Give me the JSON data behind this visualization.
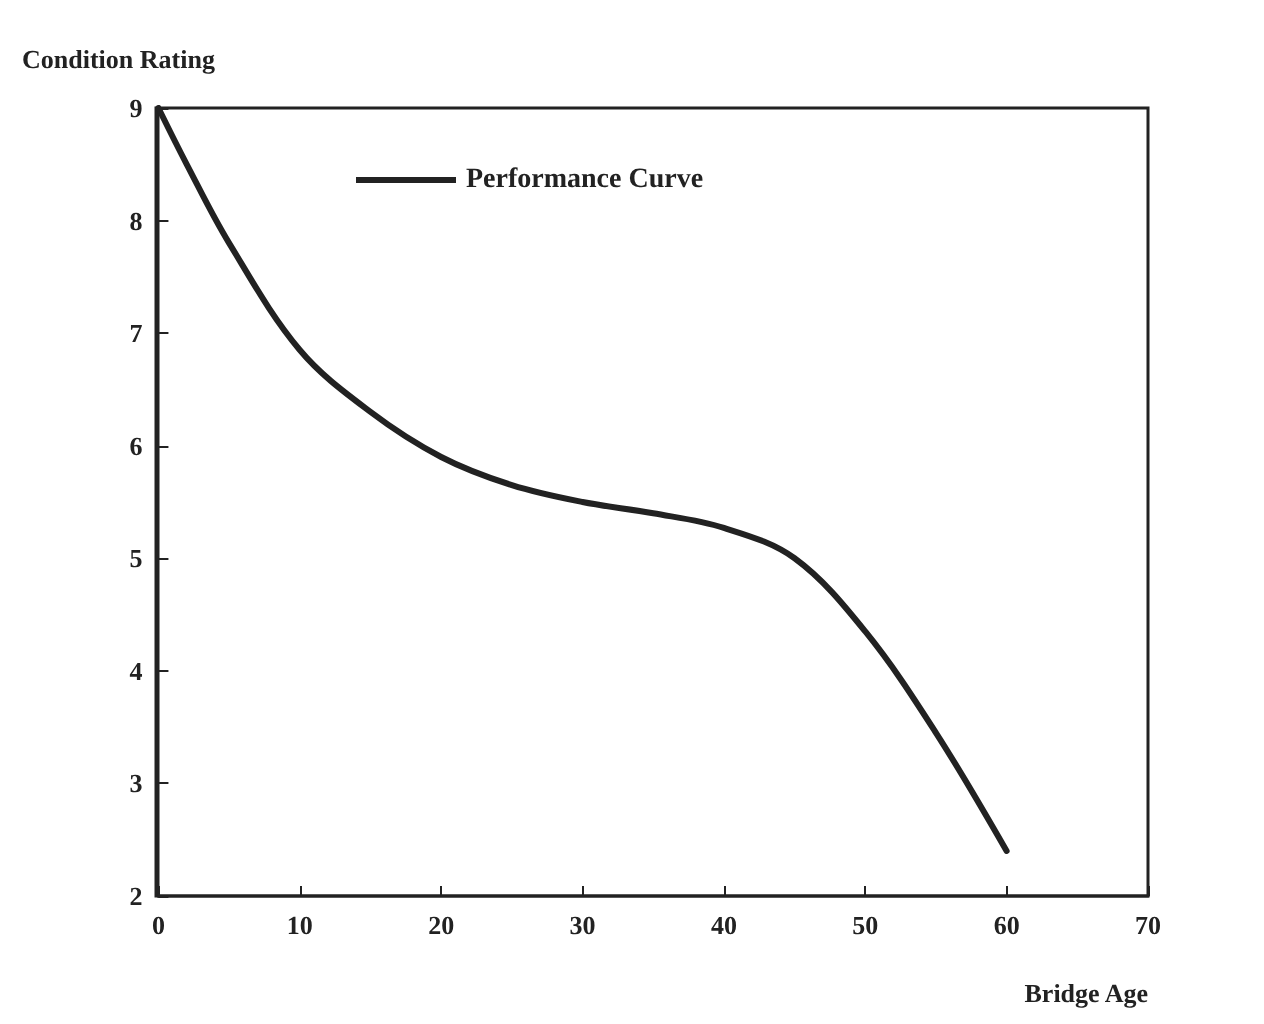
{
  "chart_data": {
    "type": "line",
    "xlabel": "Bridge Age",
    "ylabel": "Condition Rating",
    "x": [
      0,
      2,
      5,
      10,
      15,
      20,
      25,
      30,
      35,
      40,
      45,
      50,
      55,
      60
    ],
    "series": [
      {
        "name": "Performance Curve",
        "color": "#222222",
        "values": [
          9,
          8.5,
          7.8,
          6.85,
          6.3,
          5.9,
          5.65,
          5.5,
          5.4,
          5.27,
          5.0,
          4.35,
          3.45,
          2.4
        ]
      }
    ],
    "xlim": [
      0,
      70
    ],
    "xticks": [
      0,
      10,
      20,
      30,
      40,
      50,
      60,
      70
    ],
    "ylim": [
      2,
      9
    ],
    "yticks": [
      2,
      3,
      4,
      5,
      6,
      7,
      8,
      9
    ],
    "grid": false,
    "legend": "top left",
    "marker": "none",
    "line_style": "solid"
  }
}
